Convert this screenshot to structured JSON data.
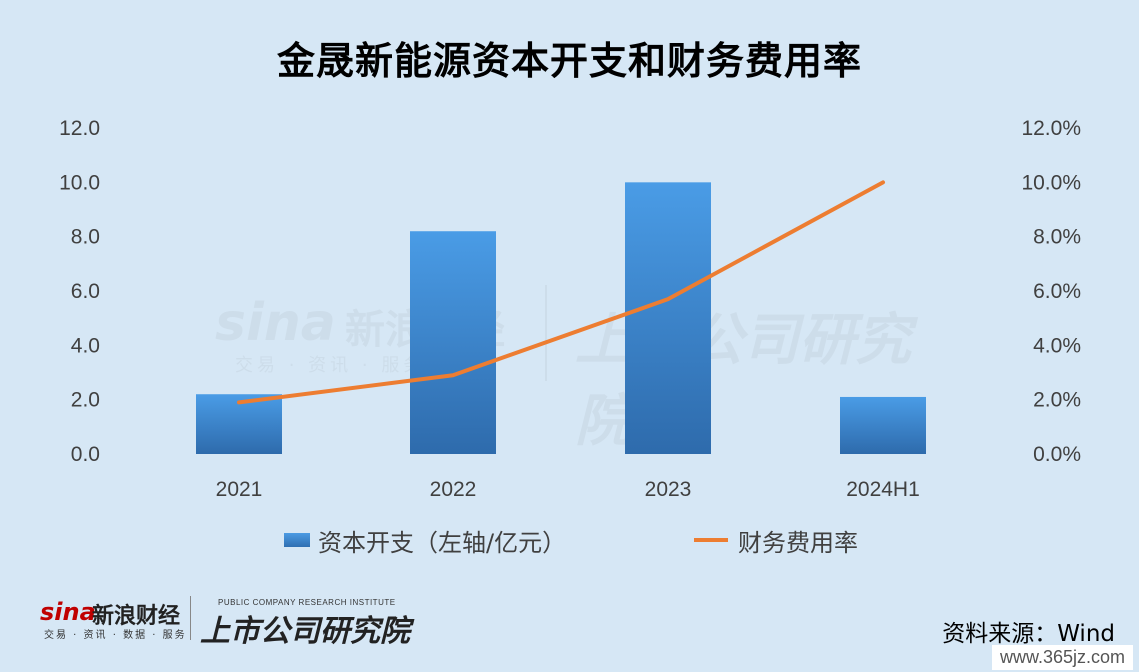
{
  "title": "金晟新能源资本开支和财务费用率",
  "chart_data": {
    "type": "bar",
    "title": "金晟新能源资本开支和财务费用率",
    "categories": [
      "2021",
      "2022",
      "2023",
      "2024H1"
    ],
    "series": [
      {
        "name": "资本开支（左轴/亿元）",
        "kind": "bar",
        "axis": "left",
        "values": [
          2.2,
          8.2,
          10.0,
          2.1
        ],
        "color": "#3b86d2"
      },
      {
        "name": "财务费用率",
        "kind": "line",
        "axis": "right",
        "values": [
          1.9,
          2.9,
          5.7,
          10.0
        ],
        "color": "#ed7d31"
      }
    ],
    "y_left": {
      "ylim": [
        0,
        12
      ],
      "ticks": [
        "0.0",
        "2.0",
        "4.0",
        "6.0",
        "8.0",
        "10.0",
        "12.0"
      ]
    },
    "y_right": {
      "ylim": [
        0,
        12
      ],
      "ticks": [
        "0.0%",
        "2.0%",
        "4.0%",
        "6.0%",
        "8.0%",
        "10.0%",
        "12.0%"
      ]
    },
    "grid": false,
    "legend": "bottom"
  },
  "watermark": {
    "brand": "sina",
    "name": "新浪财经",
    "sub": "交易 · 资讯 · 服务",
    "institute": "上市公司研究院"
  },
  "footer": {
    "brand": "sina",
    "name": "新浪财经",
    "sub": "交易 · 资讯 · 数据 · 服务",
    "institute_en": "PUBLIC COMPANY RESEARCH INSTITUTE",
    "institute": "上市公司研究院",
    "source": "资料来源：Wind",
    "site": "www.365jz.com"
  }
}
